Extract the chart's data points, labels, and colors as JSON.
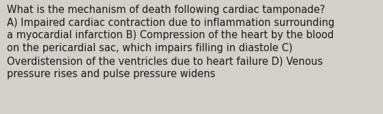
{
  "lines": [
    "What is the mechanism of death following cardiac tamponade?",
    "A) Impaired cardiac contraction due to inflammation surrounding",
    "a myocardial infarction B) Compression of the heart by the blood",
    "on the pericardial sac, which impairs filling in diastole C)",
    "Overdistension of the ventricles due to heart failure D) Venous",
    "pressure rises and pulse pressure widens"
  ],
  "background_color": "#d3cfca",
  "text_color": "#1a1a1a",
  "font_size": 10.5,
  "fig_width": 5.58,
  "fig_height": 1.67,
  "dpi": 100
}
